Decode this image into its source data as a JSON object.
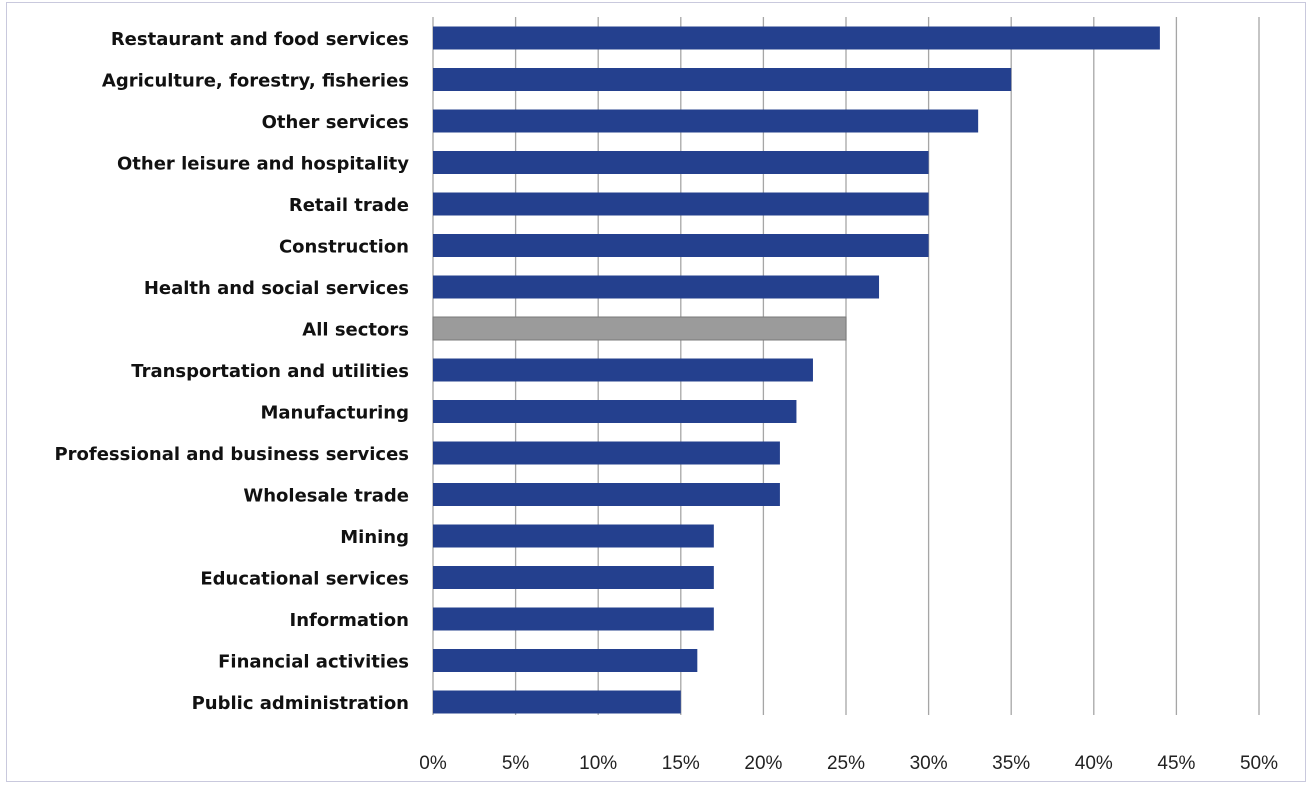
{
  "chart_data": {
    "type": "bar",
    "orientation": "horizontal",
    "title": "",
    "xlabel": "",
    "ylabel": "",
    "categories": [
      "Restaurant and food services",
      "Agriculture, forestry, fisheries",
      "Other services",
      "Other leisure and hospitality",
      "Retail trade",
      "Construction",
      "Health and social services",
      "All sectors",
      "Transportation and utilities",
      "Manufacturing",
      "Professional and business services",
      "Wholesale trade",
      "Mining",
      "Educational services",
      "Information",
      "Financial activities",
      "Public administration"
    ],
    "values": [
      44,
      35,
      33,
      30,
      30,
      30,
      27,
      25,
      23,
      22,
      21,
      21,
      17,
      17,
      17,
      16,
      15
    ],
    "xlim": [
      0,
      50
    ],
    "x_ticks": [
      0,
      5,
      10,
      15,
      20,
      25,
      30,
      35,
      40,
      45,
      50
    ],
    "x_tick_labels": [
      "0%",
      "5%",
      "10%",
      "15%",
      "20%",
      "25%",
      "30%",
      "35%",
      "40%",
      "45%",
      "50%"
    ],
    "grid": "vertical",
    "legend": "none",
    "colors": {
      "bar": "#24408e",
      "highlight_bar": "#9b9b9b",
      "gridline": "#a6a6a6"
    },
    "highlight_category": "All sectors"
  }
}
